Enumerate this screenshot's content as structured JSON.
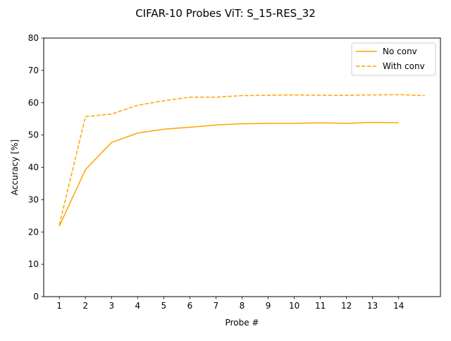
{
  "chart_data": {
    "type": "line",
    "title": "CIFAR-10 Probes ViT: S_15-RES_32",
    "xlabel": "Probe #",
    "ylabel": "Accuracy [%]",
    "xlim": [
      0.4,
      15.6
    ],
    "ylim": [
      0,
      80
    ],
    "xticks": [
      1,
      2,
      3,
      4,
      5,
      6,
      7,
      8,
      9,
      10,
      11,
      12,
      13,
      14
    ],
    "yticks": [
      0,
      10,
      20,
      30,
      40,
      50,
      60,
      70,
      80
    ],
    "grid": false,
    "legend_position": "top-right",
    "series": [
      {
        "name": "No conv",
        "color": "#FFA500",
        "style": "solid",
        "x": [
          1,
          2,
          3,
          4,
          5,
          6,
          7,
          8,
          9,
          10,
          11,
          12,
          13,
          14
        ],
        "y": [
          21.8,
          39.3,
          47.7,
          50.6,
          51.8,
          52.4,
          53.1,
          53.5,
          53.6,
          53.6,
          53.8,
          53.6,
          53.9,
          53.8
        ]
      },
      {
        "name": "With conv",
        "color": "#FFA500",
        "style": "dashed",
        "x": [
          1,
          2,
          3,
          4,
          5,
          6,
          7,
          8,
          9,
          10,
          11,
          12,
          13,
          14,
          15
        ],
        "y": [
          22.2,
          55.7,
          56.5,
          59.2,
          60.6,
          61.7,
          61.7,
          62.2,
          62.3,
          62.4,
          62.3,
          62.3,
          62.4,
          62.5,
          62.2
        ]
      }
    ]
  }
}
